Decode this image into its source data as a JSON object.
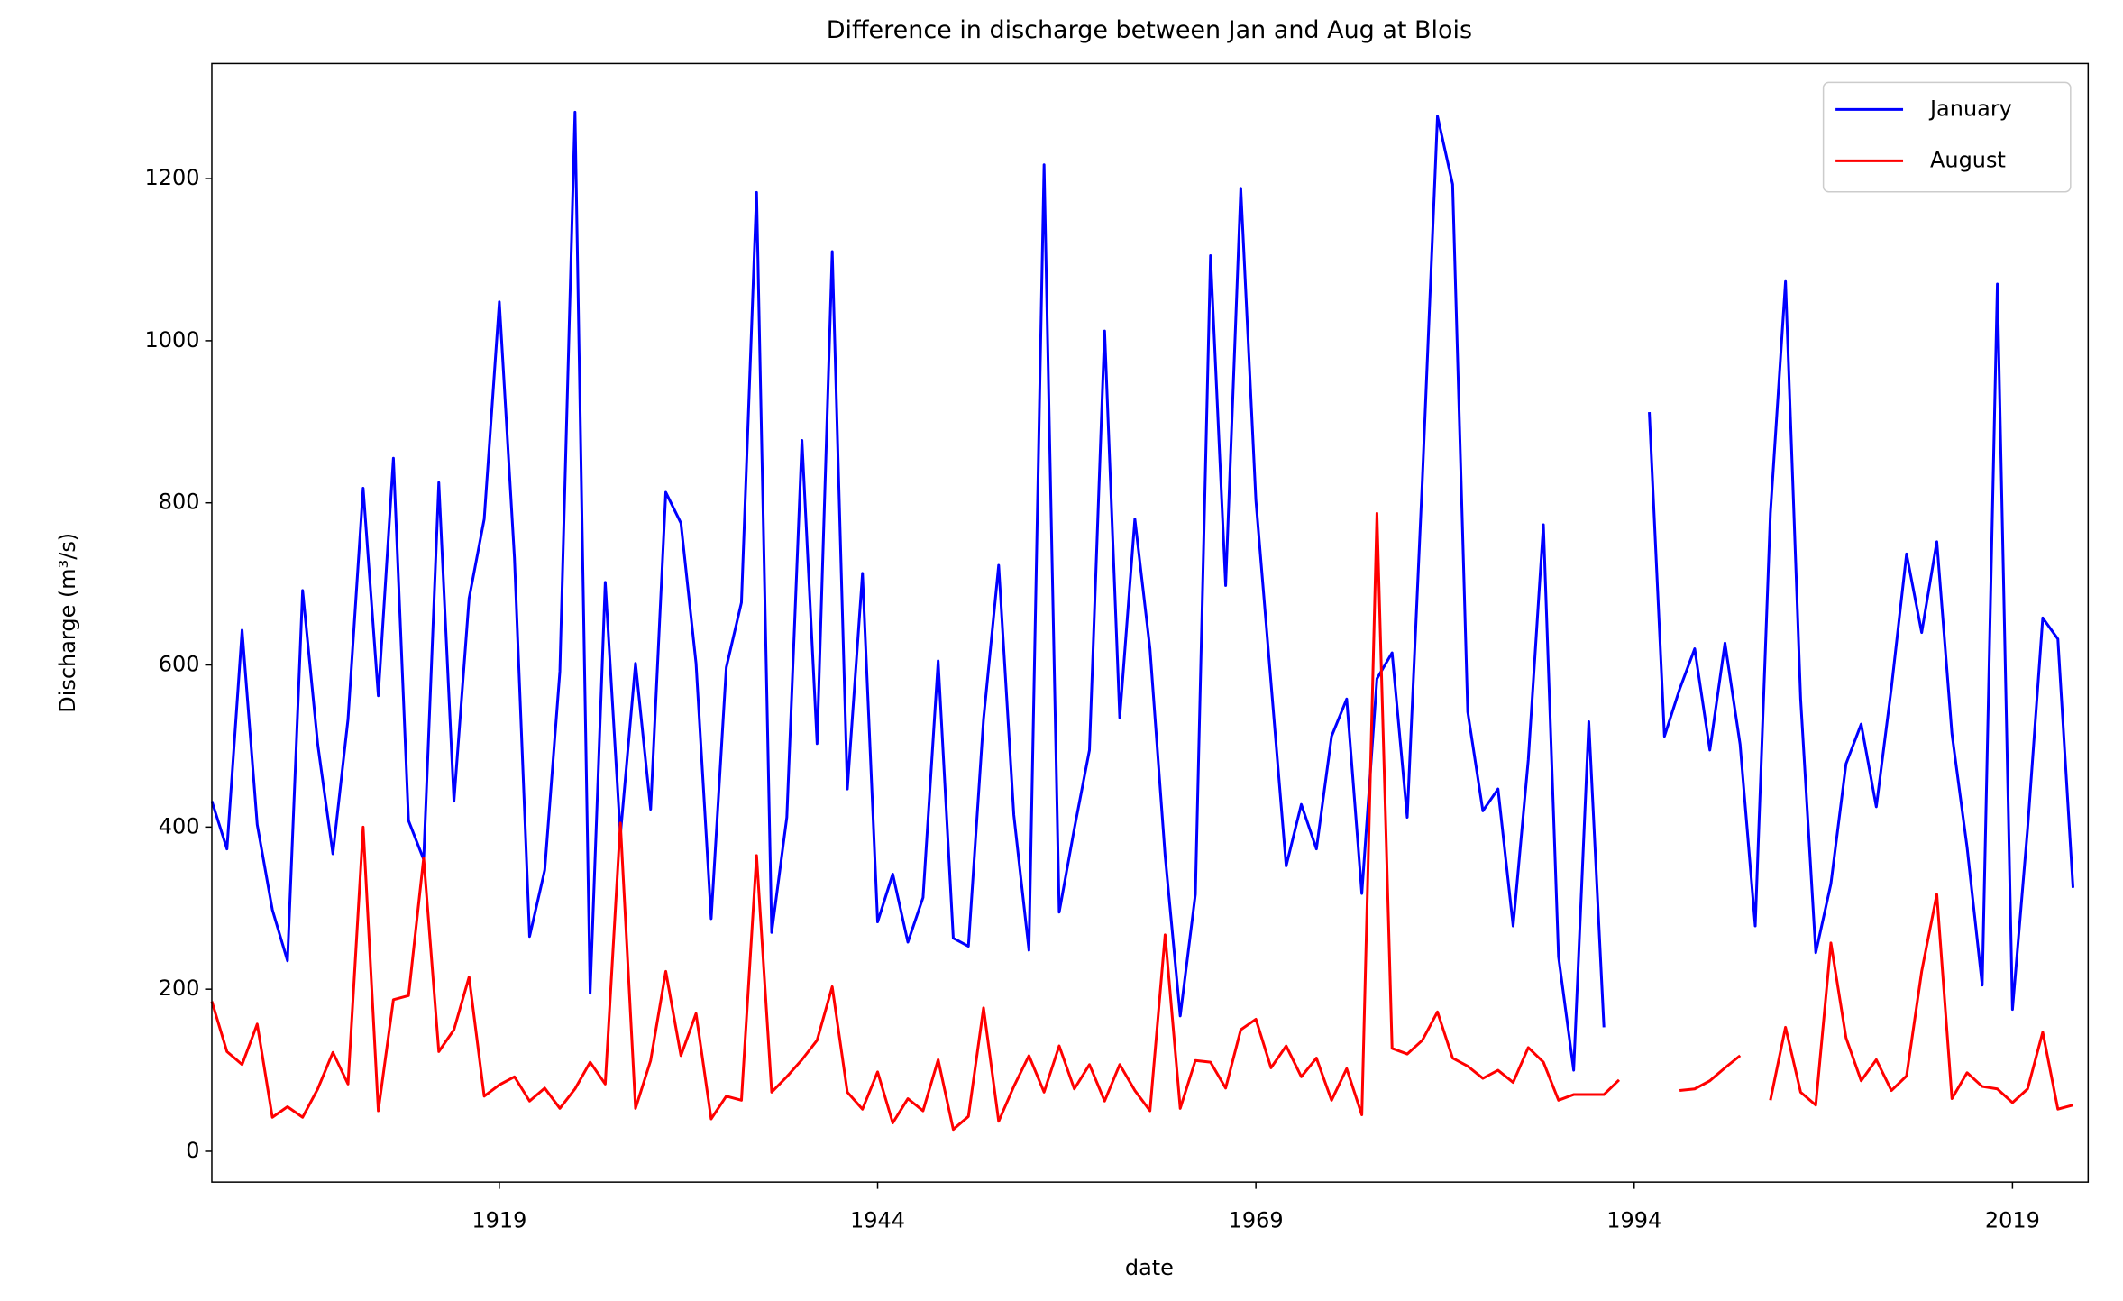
{
  "chart_data": {
    "type": "line",
    "title": "Difference in discharge between Jan and Aug at Blois",
    "xlabel": "date",
    "ylabel": "Discharge (m³/s)",
    "x": [
      1900,
      1901,
      1902,
      1903,
      1904,
      1905,
      1906,
      1907,
      1908,
      1909,
      1910,
      1911,
      1912,
      1913,
      1914,
      1915,
      1916,
      1917,
      1918,
      1919,
      1920,
      1921,
      1922,
      1923,
      1924,
      1925,
      1926,
      1927,
      1928,
      1929,
      1930,
      1931,
      1932,
      1933,
      1934,
      1935,
      1936,
      1937,
      1938,
      1939,
      1940,
      1941,
      1942,
      1943,
      1944,
      1945,
      1946,
      1947,
      1948,
      1949,
      1950,
      1951,
      1952,
      1953,
      1954,
      1955,
      1956,
      1957,
      1958,
      1959,
      1960,
      1961,
      1962,
      1963,
      1964,
      1965,
      1966,
      1967,
      1968,
      1969,
      1970,
      1971,
      1972,
      1973,
      1974,
      1975,
      1976,
      1977,
      1978,
      1979,
      1980,
      1981,
      1982,
      1983,
      1984,
      1985,
      1986,
      1987,
      1988,
      1989,
      1990,
      1991,
      1992,
      1993,
      1994,
      1995,
      1996,
      1997,
      1998,
      1999,
      2000,
      2001,
      2002,
      2003,
      2004,
      2005,
      2006,
      2007,
      2008,
      2009,
      2010,
      2011,
      2012,
      2013,
      2014,
      2015,
      2016,
      2017,
      2018,
      2019,
      2020,
      2021,
      2022,
      2023
    ],
    "series": [
      {
        "name": "January",
        "color": "#0000ff",
        "values": [
          432,
          373,
          643,
          403,
          298,
          235,
          692,
          502,
          367,
          533,
          818,
          562,
          855,
          408,
          360,
          825,
          432,
          682,
          780,
          1048,
          732,
          265,
          347,
          592,
          1282,
          195,
          702,
          390,
          602,
          422,
          813,
          775,
          602,
          287,
          597,
          677,
          1183,
          270,
          412,
          877,
          503,
          1110,
          447,
          713,
          283,
          342,
          258,
          313,
          605,
          263,
          253,
          533,
          723,
          415,
          248,
          1217,
          295,
          398,
          495,
          1012,
          535,
          780,
          620,
          365,
          167,
          317,
          1105,
          698,
          1188,
          803,
          578,
          352,
          428,
          373,
          512,
          558,
          318,
          583,
          615,
          412,
          828,
          1277,
          1193,
          542,
          420,
          447,
          278,
          483,
          773,
          240,
          100,
          530,
          153,
          null,
          null,
          912,
          512,
          570,
          620,
          495,
          627,
          502,
          278,
          787,
          1073,
          558,
          245,
          330,
          478,
          527,
          425,
          572,
          737,
          640,
          752,
          515,
          375,
          205,
          1070,
          175,
          398,
          658,
          632,
          325
        ]
      },
      {
        "name": "August",
        "color": "#ff0000",
        "values": [
          185,
          123,
          107,
          157,
          42,
          55,
          42,
          77,
          122,
          83,
          400,
          50,
          187,
          192,
          362,
          123,
          150,
          215,
          68,
          82,
          92,
          62,
          78,
          53,
          77,
          110,
          83,
          405,
          53,
          112,
          222,
          118,
          170,
          40,
          68,
          63,
          365,
          73,
          92,
          113,
          137,
          203,
          73,
          52,
          98,
          35,
          65,
          50,
          113,
          27,
          43,
          177,
          37,
          80,
          118,
          73,
          130,
          77,
          107,
          62,
          107,
          75,
          50,
          267,
          53,
          112,
          110,
          78,
          150,
          163,
          103,
          130,
          92,
          115,
          63,
          102,
          45,
          787,
          127,
          120,
          137,
          172,
          115,
          105,
          90,
          100,
          85,
          128,
          110,
          63,
          70,
          70,
          70,
          88,
          null,
          null,
          null,
          75,
          77,
          87,
          103,
          118,
          null,
          63,
          153,
          73,
          57,
          257,
          140,
          87,
          113,
          75,
          93,
          222,
          317,
          65,
          97,
          80,
          77,
          60,
          77,
          147,
          52,
          57
        ]
      }
    ],
    "xlim": [
      1900,
      2024
    ],
    "xticks": [
      1919,
      1944,
      1969,
      1994,
      2019
    ],
    "ylim": [
      -38,
      1342
    ],
    "yticks": [
      0,
      200,
      400,
      600,
      800,
      1000,
      1200
    ],
    "legend": "upper right"
  }
}
